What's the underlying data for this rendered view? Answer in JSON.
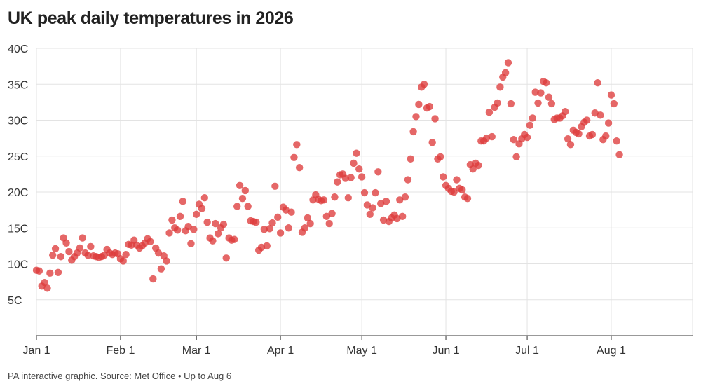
{
  "header": {
    "title": "UK peak daily temperatures in 2026"
  },
  "footer": {
    "source": "PA interactive graphic. Source: Met Office • Up to Aug 6"
  },
  "colors": {
    "dot": "#de3c3c",
    "grid": "#e3e3e3",
    "axis": "#333333"
  },
  "chart_data": {
    "type": "scatter",
    "title": "UK peak daily temperatures in 2026",
    "xlabel": "",
    "ylabel": "",
    "x_start": "2026-01-01",
    "x_end": "2026-08-31",
    "ylim": [
      0,
      40
    ],
    "y_ticks": [
      {
        "value": 5,
        "label": "5C"
      },
      {
        "value": 10,
        "label": "10C"
      },
      {
        "value": 15,
        "label": "15C"
      },
      {
        "value": 20,
        "label": "20C"
      },
      {
        "value": 25,
        "label": "25C"
      },
      {
        "value": 30,
        "label": "30C"
      },
      {
        "value": 35,
        "label": "35C"
      },
      {
        "value": 40,
        "label": "40C"
      }
    ],
    "x_ticks": [
      {
        "date": "2026-01-01",
        "label": "Jan 1"
      },
      {
        "date": "2026-02-01",
        "label": "Feb 1"
      },
      {
        "date": "2026-03-01",
        "label": "Mar 1"
      },
      {
        "date": "2026-04-01",
        "label": "Apr 1"
      },
      {
        "date": "2026-05-01",
        "label": "May 1"
      },
      {
        "date": "2026-06-01",
        "label": "Jun 1"
      },
      {
        "date": "2026-07-01",
        "label": "Jul 1"
      },
      {
        "date": "2026-08-01",
        "label": "Aug 1"
      }
    ],
    "grid": true,
    "series": [
      {
        "values": [
          9.1,
          9.0,
          6.9,
          7.4,
          6.6,
          8.7,
          11.2,
          12.1,
          8.8,
          11.0,
          13.6,
          12.9,
          11.7,
          10.5,
          11.0,
          11.5,
          12.2,
          13.6,
          11.5,
          11.2,
          12.4,
          11.1,
          11.0,
          10.9,
          11.0,
          11.2,
          12.0,
          11.5,
          11.3,
          11.5,
          11.4,
          10.7,
          10.4,
          11.3,
          12.7,
          12.6,
          13.3,
          12.6,
          12.2,
          12.5,
          12.9,
          13.5,
          13.1,
          7.9,
          12.2,
          11.5,
          9.3,
          11.1,
          10.4,
          14.3,
          16.1,
          15.0,
          14.7,
          16.6,
          18.7,
          14.6,
          15.2,
          12.8,
          14.8,
          16.9,
          18.3,
          17.7,
          19.2,
          15.8,
          13.6,
          13.2,
          15.6,
          14.2,
          15.0,
          15.5,
          10.8,
          13.6,
          13.3,
          13.4,
          18.0,
          20.9,
          19.1,
          20.2,
          18.0,
          16.0,
          15.9,
          15.8,
          11.9,
          12.3,
          14.8,
          12.5,
          14.9,
          15.7,
          20.8,
          16.5,
          14.3,
          17.9,
          17.5,
          15.0,
          17.2,
          24.8,
          26.6,
          23.4,
          14.4,
          15.0,
          16.4,
          15.6,
          18.9,
          19.6,
          19.0,
          18.8,
          18.9,
          16.6,
          15.6,
          17.0,
          19.3,
          21.4,
          22.4,
          22.5,
          21.9,
          19.2,
          22.0,
          24.0,
          25.4,
          23.2,
          22.1,
          19.9,
          18.2,
          16.9,
          17.8,
          19.9,
          22.8,
          18.4,
          16.1,
          18.7,
          15.9,
          16.4,
          16.8,
          16.3,
          18.9,
          16.6,
          19.3,
          21.7,
          24.6,
          28.4,
          30.5,
          32.2,
          34.6,
          35.0,
          31.7,
          31.9,
          26.9,
          30.2,
          24.6,
          24.9,
          22.1,
          20.9,
          20.5,
          20.1,
          20.0,
          21.7,
          20.5,
          20.3,
          19.3,
          19.1,
          23.8,
          23.2,
          24.0,
          23.7,
          27.1,
          27.1,
          27.5,
          31.1,
          27.7,
          31.8,
          32.4,
          34.6,
          36.0,
          36.6,
          38.0,
          32.3,
          27.3,
          24.9,
          26.7,
          27.4,
          28.0,
          27.6,
          29.3,
          30.3,
          33.9,
          32.4,
          33.8,
          35.4,
          35.2,
          33.2,
          32.3,
          30.1,
          30.3,
          30.3,
          30.6,
          31.2,
          27.4,
          26.6,
          28.6,
          28.3,
          28.1,
          29.1,
          29.7,
          30.0,
          27.8,
          28.0,
          31.0,
          35.2,
          30.7,
          27.3,
          27.8,
          29.6,
          33.5,
          32.3,
          27.1,
          25.2
        ]
      }
    ]
  }
}
